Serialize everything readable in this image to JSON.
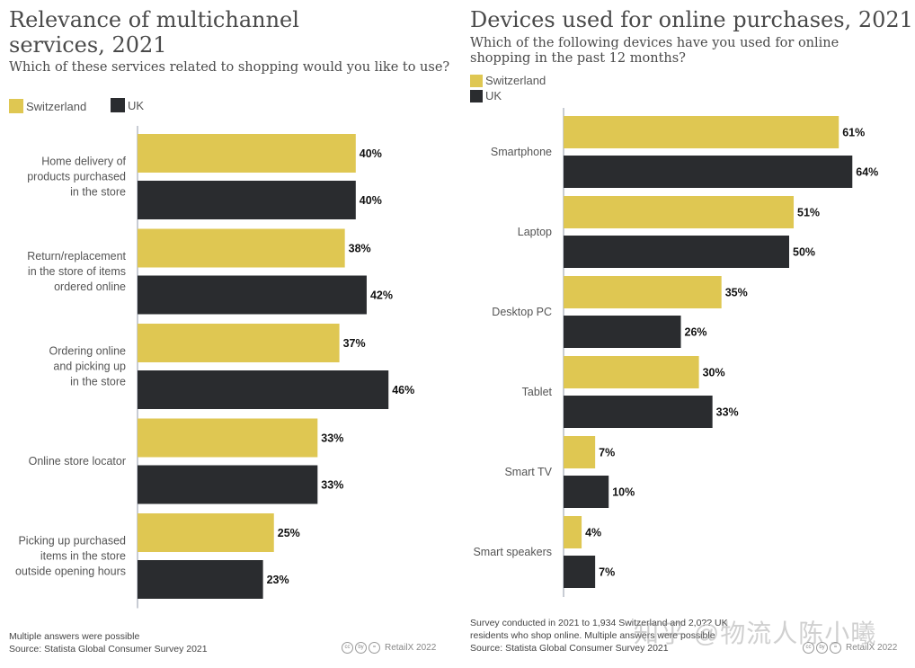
{
  "colors": {
    "switzerland": "#dfc752",
    "uk": "#2a2c2f",
    "axis": "#c8ccd4",
    "label": "#555555",
    "value": "#111111"
  },
  "chart_data": [
    {
      "type": "bar",
      "orientation": "horizontal",
      "title": "Relevance of multichannel services, 2021",
      "subtitle": "Which of these services related to shopping would you like to use?",
      "categories": [
        [
          "Home delivery of",
          "products purchased",
          "in the store"
        ],
        [
          "Return/replacement",
          "in the store of items",
          "ordered online"
        ],
        [
          "Ordering online",
          "and picking up",
          "in the store"
        ],
        [
          "Online store locator"
        ],
        [
          "Picking up purchased",
          "items in the store",
          "outside opening hours"
        ]
      ],
      "series": [
        {
          "name": "Switzerland",
          "values": [
            40,
            38,
            37,
            33,
            25
          ]
        },
        {
          "name": "UK",
          "values": [
            40,
            42,
            46,
            33,
            23
          ]
        }
      ],
      "value_suffix": "%",
      "xlim": [
        0,
        60
      ],
      "legend": "top-left",
      "grid": false,
      "footnote": "Multiple answers were possible",
      "source": "Source: Statista Global Consumer Survey 2021",
      "brand": "RetailX 2022"
    },
    {
      "type": "bar",
      "orientation": "horizontal",
      "title": "Devices used for online purchases, 2021",
      "subtitle_lines": [
        "Which of the following devices have you used for online",
        "shopping in the past 12 months?"
      ],
      "categories": [
        [
          "Smartphone"
        ],
        [
          "Laptop"
        ],
        [
          "Desktop PC"
        ],
        [
          "Tablet"
        ],
        [
          "Smart TV"
        ],
        [
          "Smart speakers"
        ]
      ],
      "series": [
        {
          "name": "Switzerland",
          "values": [
            61,
            51,
            35,
            30,
            7,
            4
          ]
        },
        {
          "name": "UK",
          "values": [
            64,
            50,
            26,
            33,
            10,
            7
          ]
        }
      ],
      "value_suffix": "%",
      "xlim": [
        0,
        70
      ],
      "legend": "top-left",
      "grid": false,
      "footnote_lines": [
        "Survey conducted in 2021 to 1,934 Switzerland and 2,0?? UK",
        "residents who shop online. Multiple answers were possible"
      ],
      "source": "Source: Statista Global Consumer Survey 2021",
      "brand": "RetailX 2022"
    }
  ],
  "left": {
    "title_lines": [
      "Relevance of multichannel",
      "services, 2021"
    ],
    "subtitle": "Which of these services related to shopping would you like to use?",
    "legend": [
      "Switzerland",
      "UK"
    ],
    "footnote": "Multiple answers were possible",
    "source": "Source: Statista Global Consumer Survey 2021",
    "brand": "RetailX 2022"
  },
  "right": {
    "title": "Devices used for online purchases, 2021",
    "subtitle_lines": [
      "Which of the following devices have you used for online",
      "shopping in the past 12 months?"
    ],
    "legend": [
      "Switzerland",
      "UK"
    ],
    "footnote_lines": [
      "Survey conducted in 2021 to 1,934 Switzerland and 2,0?? UK",
      "residents who shop online. Multiple answers were possible"
    ],
    "source": "Source: Statista Global Consumer Survey 2021",
    "brand": "RetailX 2022"
  },
  "watermark": "知乎 @物流人陈小曦",
  "cc_icons": [
    "cc",
    "by",
    "="
  ]
}
